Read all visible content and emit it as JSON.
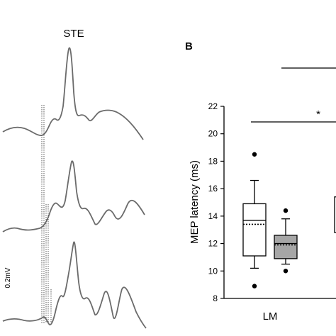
{
  "panel_a": {
    "title": "STE",
    "scale_label": "0.2mV"
  },
  "chart_data": {
    "type": "box",
    "panel_label": "B",
    "ylabel": "MEP latency (ms)",
    "ylim": [
      8,
      22
    ],
    "yticks": [
      8,
      10,
      12,
      14,
      16,
      18,
      20,
      22
    ],
    "categories": [
      "LM"
    ],
    "boxes": [
      {
        "category": "LM",
        "fill": "#ffffff",
        "whisker_low": 10.2,
        "q1": 11.1,
        "median": 13.7,
        "mean": 13.4,
        "q3": 14.9,
        "whisker_high": 16.6,
        "outliers": [
          18.5,
          8.9
        ]
      },
      {
        "category": "LM",
        "fill": "#a6a6a6",
        "whisker_low": 10.5,
        "q1": 10.9,
        "median": 12.0,
        "mean": 11.9,
        "q3": 12.6,
        "whisker_high": 13.8,
        "outliers": [
          14.4,
          10.0
        ]
      }
    ],
    "partial_box_right": {
      "q1": 12.8,
      "q3": 15.4
    },
    "significance": {
      "symbol": "*"
    }
  }
}
